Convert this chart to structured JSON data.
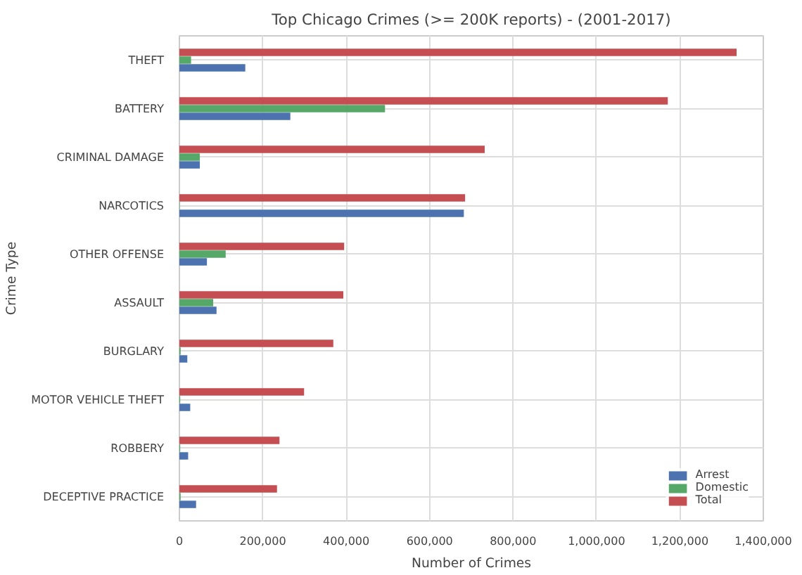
{
  "chart_data": {
    "type": "bar",
    "orientation": "horizontal",
    "title": "Top Chicago Crimes (>= 200K reports) - (2001-2017)",
    "xlabel": "Number of Crimes",
    "ylabel": "Crime Type",
    "categories": [
      "THEFT",
      "BATTERY",
      "CRIMINAL DAMAGE",
      "NARCOTICS",
      "OTHER OFFENSE",
      "ASSAULT",
      "BURGLARY",
      "MOTOR VEHICLE THEFT",
      "ROBBERY",
      "DECEPTIVE PRACTICE"
    ],
    "series": [
      {
        "name": "Arrest",
        "color": "#4c72b0",
        "values": [
          158000,
          266000,
          49000,
          682000,
          66000,
          89000,
          19000,
          26000,
          21000,
          40000
        ]
      },
      {
        "name": "Domestic",
        "color": "#55a868",
        "values": [
          28000,
          493000,
          49000,
          1000,
          111000,
          81000,
          3000,
          2000,
          2000,
          3000
        ]
      },
      {
        "name": "Total",
        "color": "#c44e52",
        "values": [
          1336000,
          1171000,
          732000,
          685000,
          395000,
          393000,
          369000,
          299000,
          240000,
          234000
        ]
      }
    ],
    "xlim": [
      0,
      1400000
    ],
    "xticks": [
      0,
      {
        "value": 200000,
        "label": "200,000"
      },
      {
        "value": 400000,
        "label": "400,000"
      },
      {
        "value": 600000,
        "label": "600,000"
      },
      {
        "value": 800000,
        "label": "800,000"
      },
      {
        "value": 1000000,
        "label": "1,000,000"
      },
      {
        "value": 1200000,
        "label": "1,200,000"
      },
      {
        "value": 1400000,
        "label": "1,400,000"
      }
    ],
    "grid": true,
    "legend": "bottom right"
  }
}
